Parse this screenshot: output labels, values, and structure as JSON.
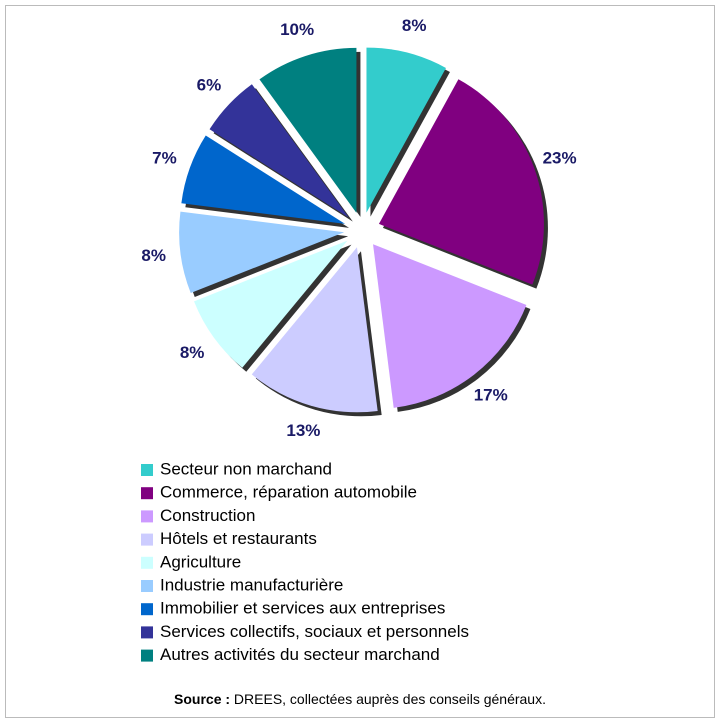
{
  "chart_data": {
    "type": "pie",
    "categories": [
      "Secteur non marchand",
      "Commerce, réparation automobile",
      "Construction",
      "Hôtels et restaurants",
      "Agriculture",
      "Industrie manufacturière",
      "Immobilier et services aux entreprises",
      "Services collectifs, sociaux et personnels",
      "Autres activités du secteur marchand"
    ],
    "values": [
      8,
      23,
      17,
      13,
      8,
      8,
      7,
      6,
      10
    ],
    "value_labels": [
      "8%",
      "23%",
      "17%",
      "13%",
      "8%",
      "8%",
      "7%",
      "6%",
      "10%"
    ],
    "colors": [
      "#33cccc",
      "#800080",
      "#cc99ff",
      "#ccccff",
      "#ccffff",
      "#99ccff",
      "#0066cc",
      "#333399",
      "#008080"
    ],
    "source_label": "Source :",
    "source": "DREES, collectées auprès des conseils généraux."
  }
}
